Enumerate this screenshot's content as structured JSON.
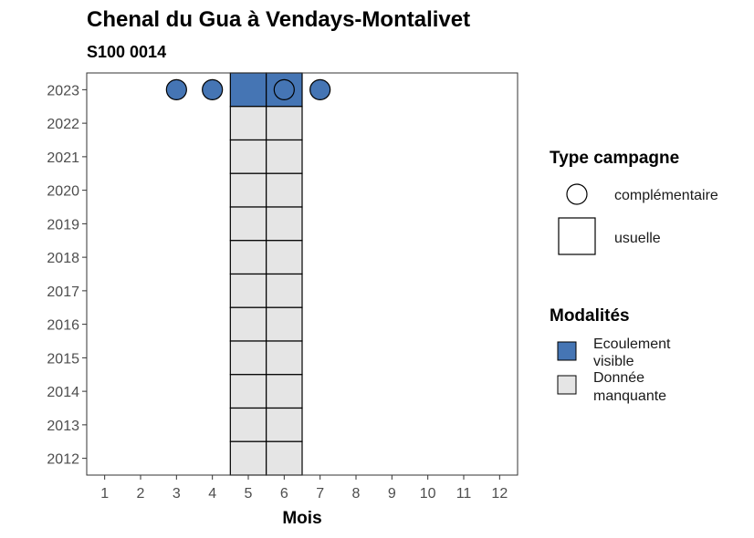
{
  "chart_data": {
    "type": "heatmap",
    "title": "Chenal du Gua à Vendays-Montalivet",
    "subtitle": "S100 0014",
    "xlabel": "Mois",
    "ylabel": "",
    "x_ticks": [
      1,
      2,
      3,
      4,
      5,
      6,
      7,
      8,
      9,
      10,
      11,
      12
    ],
    "y_ticks": [
      2012,
      2013,
      2014,
      2015,
      2016,
      2017,
      2018,
      2019,
      2020,
      2021,
      2022,
      2023
    ],
    "xlim": [
      0.5,
      12.5
    ],
    "ylim": [
      2011.5,
      2023.5
    ],
    "grid": false,
    "usuelle_cells": [
      {
        "mois": 5,
        "annee": 2023,
        "modalite": "Ecoulement visible"
      },
      {
        "mois": 6,
        "annee": 2023,
        "modalite": "Ecoulement visible"
      },
      {
        "mois": 5,
        "annee": 2022,
        "modalite": "Donnée manquante"
      },
      {
        "mois": 6,
        "annee": 2022,
        "modalite": "Donnée manquante"
      },
      {
        "mois": 5,
        "annee": 2021,
        "modalite": "Donnée manquante"
      },
      {
        "mois": 6,
        "annee": 2021,
        "modalite": "Donnée manquante"
      },
      {
        "mois": 5,
        "annee": 2020,
        "modalite": "Donnée manquante"
      },
      {
        "mois": 6,
        "annee": 2020,
        "modalite": "Donnée manquante"
      },
      {
        "mois": 5,
        "annee": 2019,
        "modalite": "Donnée manquante"
      },
      {
        "mois": 6,
        "annee": 2019,
        "modalite": "Donnée manquante"
      },
      {
        "mois": 5,
        "annee": 2018,
        "modalite": "Donnée manquante"
      },
      {
        "mois": 6,
        "annee": 2018,
        "modalite": "Donnée manquante"
      },
      {
        "mois": 5,
        "annee": 2017,
        "modalite": "Donnée manquante"
      },
      {
        "mois": 6,
        "annee": 2017,
        "modalite": "Donnée manquante"
      },
      {
        "mois": 5,
        "annee": 2016,
        "modalite": "Donnée manquante"
      },
      {
        "mois": 6,
        "annee": 2016,
        "modalite": "Donnée manquante"
      },
      {
        "mois": 5,
        "annee": 2015,
        "modalite": "Donnée manquante"
      },
      {
        "mois": 6,
        "annee": 2015,
        "modalite": "Donnée manquante"
      },
      {
        "mois": 5,
        "annee": 2014,
        "modalite": "Donnée manquante"
      },
      {
        "mois": 6,
        "annee": 2014,
        "modalite": "Donnée manquante"
      },
      {
        "mois": 5,
        "annee": 2013,
        "modalite": "Donnée manquante"
      },
      {
        "mois": 6,
        "annee": 2013,
        "modalite": "Donnée manquante"
      },
      {
        "mois": 5,
        "annee": 2012,
        "modalite": "Donnée manquante"
      },
      {
        "mois": 6,
        "annee": 2012,
        "modalite": "Donnée manquante"
      }
    ],
    "complementaire_points": [
      {
        "mois": 3,
        "annee": 2023,
        "modalite": "Ecoulement visible"
      },
      {
        "mois": 4,
        "annee": 2023,
        "modalite": "Ecoulement visible"
      },
      {
        "mois": 6,
        "annee": 2023,
        "modalite": "Ecoulement visible"
      },
      {
        "mois": 7,
        "annee": 2023,
        "modalite": "Ecoulement visible"
      }
    ],
    "legend_type": {
      "title": "Type campagne",
      "entries": [
        {
          "label": "complémentaire",
          "shape": "circle"
        },
        {
          "label": "usuelle",
          "shape": "square"
        }
      ]
    },
    "legend_modalites": {
      "title": "Modalités",
      "entries": [
        {
          "label_lines": [
            "Ecoulement",
            "visible"
          ],
          "color": "#4575b4"
        },
        {
          "label_lines": [
            "Donnée",
            "manquante"
          ],
          "color": "#e5e5e5"
        }
      ]
    },
    "legend_placement": "right",
    "colors": {
      "Ecoulement visible": "#4575b4",
      "Donnée manquante": "#e5e5e5"
    }
  }
}
